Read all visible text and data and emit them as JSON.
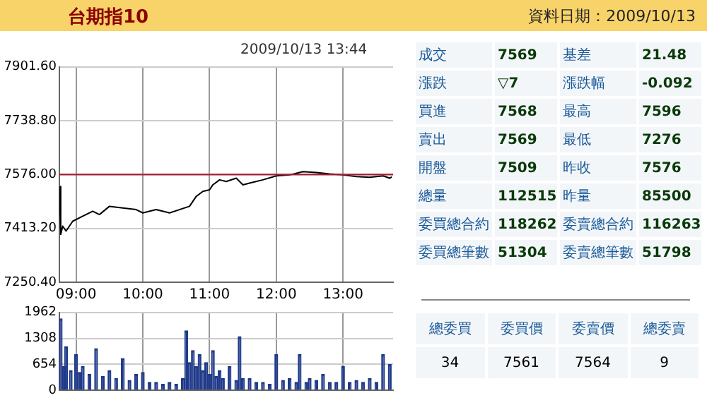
{
  "chart_data": [
    {
      "type": "line",
      "title": "台期指10",
      "subtitle": "2009/10/13 13:44",
      "grid": true,
      "marker": "none",
      "legend": false,
      "xlim": [
        8.75,
        13.75
      ],
      "xticks": [
        {
          "value": 9,
          "label": "09:00"
        },
        {
          "value": 10,
          "label": "10:00"
        },
        {
          "value": 11,
          "label": "11:00"
        },
        {
          "value": 12,
          "label": "12:00"
        },
        {
          "value": 13,
          "label": "13:00"
        }
      ],
      "ylim": [
        7250.4,
        7901.6
      ],
      "yticks": [
        {
          "value": 7250.4,
          "label": "7250.40"
        },
        {
          "value": 7413.2,
          "label": "7413.20"
        },
        {
          "value": 7576,
          "label": "7576.00"
        },
        {
          "value": 7738.8,
          "label": "7738.80"
        },
        {
          "value": 7901.6,
          "label": "7901.60"
        }
      ],
      "ref_lines": [
        {
          "axis": "y",
          "value": 7576,
          "color": "#a02030"
        }
      ],
      "series": [
        {
          "color": "#000000",
          "x": [
            8.75,
            8.77,
            8.8,
            8.85,
            8.95,
            9.1,
            9.25,
            9.35,
            9.5,
            9.7,
            9.9,
            10.0,
            10.2,
            10.4,
            10.55,
            10.7,
            10.8,
            10.9,
            11.0,
            11.05,
            11.15,
            11.25,
            11.4,
            11.5,
            11.6,
            11.8,
            12.0,
            12.2,
            12.4,
            12.6,
            12.8,
            13.0,
            13.2,
            13.4,
            13.6,
            13.7,
            13.73
          ],
          "values": [
            7540,
            7395,
            7420,
            7405,
            7435,
            7450,
            7465,
            7455,
            7480,
            7475,
            7470,
            7460,
            7470,
            7460,
            7470,
            7480,
            7510,
            7525,
            7530,
            7545,
            7560,
            7555,
            7565,
            7545,
            7550,
            7560,
            7572,
            7575,
            7585,
            7582,
            7578,
            7575,
            7570,
            7568,
            7572,
            7565,
            7569
          ]
        }
      ]
    },
    {
      "type": "bar",
      "grid": true,
      "legend": false,
      "tick_labels": "y",
      "xlim": [
        8.75,
        13.75
      ],
      "xticks": [
        {
          "value": 9,
          "label": null
        },
        {
          "value": 10,
          "label": null
        },
        {
          "value": 11,
          "label": null
        },
        {
          "value": 12,
          "label": null
        },
        {
          "value": 13,
          "label": null
        }
      ],
      "ylim": [
        0,
        1962
      ],
      "yticks": [
        0,
        654,
        1308,
        1962
      ],
      "series": [
        {
          "color": "#1f3a8a",
          "x": [
            8.77,
            8.82,
            8.85,
            8.92,
            9.0,
            9.05,
            9.1,
            9.2,
            9.3,
            9.4,
            9.5,
            9.6,
            9.7,
            9.8,
            9.9,
            10.0,
            10.1,
            10.2,
            10.3,
            10.4,
            10.5,
            10.6,
            10.65,
            10.7,
            10.75,
            10.8,
            10.85,
            10.9,
            10.95,
            11.0,
            11.05,
            11.1,
            11.15,
            11.2,
            11.3,
            11.4,
            11.45,
            11.5,
            11.6,
            11.7,
            11.8,
            11.9,
            12.0,
            12.1,
            12.2,
            12.3,
            12.35,
            12.45,
            12.5,
            12.6,
            12.7,
            12.8,
            12.9,
            13.0,
            13.1,
            13.2,
            13.3,
            13.4,
            13.5,
            13.6,
            13.7
          ],
          "values": [
            1800,
            600,
            1100,
            500,
            900,
            450,
            600,
            400,
            1050,
            350,
            500,
            300,
            800,
            250,
            400,
            450,
            200,
            200,
            150,
            200,
            150,
            300,
            1500,
            700,
            1000,
            600,
            900,
            500,
            700,
            400,
            1000,
            350,
            500,
            300,
            600,
            250,
            1350,
            300,
            300,
            200,
            200,
            150,
            900,
            250,
            300,
            200,
            900,
            200,
            300,
            250,
            400,
            200,
            200,
            600,
            200,
            250,
            200,
            300,
            200,
            900,
            650
          ]
        }
      ]
    },
    {
      "type": "other",
      "title": "資料日期：2009/10/13",
      "annotations": [
        "成交",
        "7569",
        "基差",
        "21.48",
        "漲跌",
        "▽7",
        "漲跌幅",
        "-0.092",
        "買進",
        "7568",
        "最高",
        "7596",
        "賣出",
        "7569",
        "最低",
        "7276",
        "開盤",
        "7509",
        "昨收",
        "7576",
        "總量",
        "112515",
        "昨量",
        "85500",
        "委買總合約",
        "118262",
        "委賣總合約",
        "116263",
        "委買總筆數",
        "51304",
        "委賣總筆數",
        "51798",
        "總委買",
        "委買價",
        "委賣價",
        "總委賣",
        "34",
        "7561",
        "7564",
        "9"
      ]
    }
  ]
}
